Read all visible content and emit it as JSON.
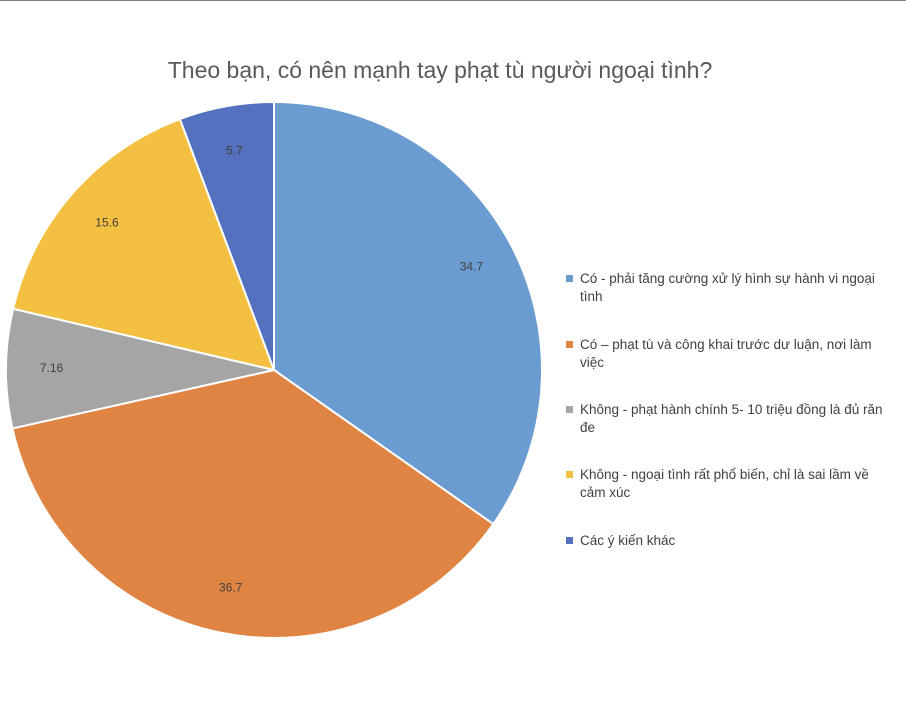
{
  "chart_data": {
    "type": "pie",
    "title": "Theo bạn, có nên mạnh tay phạt tù người ngoại tình?",
    "slices": [
      {
        "label": "Có - phải tăng cường xử lý hình sự hành vi ngoại tình",
        "value": 34.7,
        "display": "34.7",
        "color": "#6a9bd1"
      },
      {
        "label": "Có – phạt tù và công khai trước dư luận, nơi làm việc",
        "value": 36.7,
        "display": "36.7",
        "color": "#e08443"
      },
      {
        "label": "Không - phạt hành chính 5- 10 triệu đồng là đủ răn đe",
        "value": 7.16,
        "display": "7.16",
        "color": "#a5a5a5"
      },
      {
        "label": "Không - ngoại tình rất phổ biến, chỉ là sai lầm về cảm xúc",
        "value": 15.6,
        "display": "15.6",
        "color": "#f4c042"
      },
      {
        "label": "Các ý kiến khác",
        "value": 5.7,
        "display": "5.7",
        "color": "#5371bf"
      }
    ],
    "legend_position": "right",
    "start_angle": "12 o'clock, clockwise"
  }
}
